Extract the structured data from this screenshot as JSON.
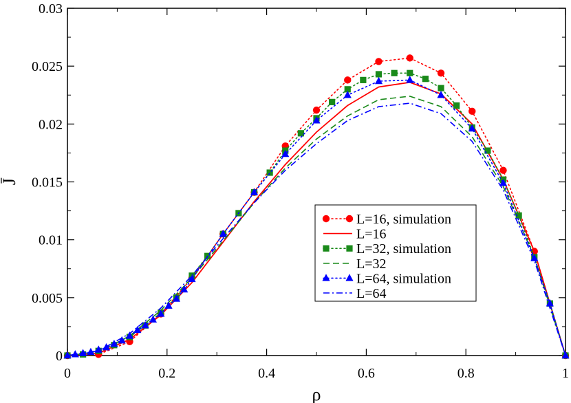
{
  "chart_data": {
    "type": "line",
    "title": "",
    "xlabel": "ρ",
    "ylabel": "J̄",
    "xlim": [
      0,
      1
    ],
    "ylim": [
      0,
      0.03
    ],
    "x_ticks": [
      0,
      0.2,
      0.4,
      0.6,
      0.8,
      1
    ],
    "x_tick_labels": [
      "0",
      "0.2",
      "0.4",
      "0.6",
      "0.8",
      "1"
    ],
    "y_ticks": [
      0,
      0.005,
      0.01,
      0.015,
      0.02,
      0.025,
      0.03
    ],
    "y_tick_labels": [
      "0",
      "0.005",
      "0.01",
      "0.015",
      "0.02",
      "0.025",
      "0.03"
    ],
    "grid": false,
    "legend_position": "center-right",
    "colors": {
      "red": "#ff0000",
      "green": "#1a8a1a",
      "blue": "#0000ff"
    },
    "series": [
      {
        "name": "L=16, simulation",
        "color": "#ff0000",
        "style": "dotted",
        "marker": "circle",
        "x": [
          0,
          0.0625,
          0.125,
          0.1875,
          0.25,
          0.3125,
          0.375,
          0.4375,
          0.5,
          0.5625,
          0.625,
          0.6875,
          0.75,
          0.8125,
          0.875,
          0.9375,
          1
        ],
        "y": [
          0,
          0.0001,
          0.0012,
          0.0036,
          0.0067,
          0.0105,
          0.0141,
          0.0181,
          0.0212,
          0.0238,
          0.0254,
          0.0257,
          0.0244,
          0.0211,
          0.016,
          0.009,
          0
        ]
      },
      {
        "name": "L=16",
        "color": "#ff0000",
        "style": "solid",
        "marker": "none",
        "x": [
          0,
          0.0625,
          0.125,
          0.1875,
          0.25,
          0.3125,
          0.375,
          0.4375,
          0.5,
          0.5625,
          0.625,
          0.6875,
          0.75,
          0.8125,
          0.875,
          0.9375,
          1
        ],
        "y": [
          0,
          0.0002,
          0.0014,
          0.0035,
          0.0063,
          0.0098,
          0.0133,
          0.0165,
          0.0193,
          0.0216,
          0.0232,
          0.0236,
          0.0226,
          0.02,
          0.0152,
          0.009,
          0
        ]
      },
      {
        "name": "L=32, simulation",
        "color": "#1a8a1a",
        "style": "dotted",
        "marker": "square",
        "x": [
          0,
          0.03125,
          0.0625,
          0.09375,
          0.125,
          0.15625,
          0.1875,
          0.21875,
          0.25,
          0.28125,
          0.3125,
          0.34375,
          0.375,
          0.40625,
          0.4375,
          0.46875,
          0.5,
          0.53125,
          0.5625,
          0.59375,
          0.625,
          0.65625,
          0.6875,
          0.71875,
          0.75,
          0.78125,
          0.8125,
          0.84375,
          0.875,
          0.90625,
          0.9375,
          0.96875,
          1
        ],
        "y": [
          0,
          0.0001,
          0.0004,
          0.0009,
          0.0016,
          0.0026,
          0.0037,
          0.005,
          0.0069,
          0.0086,
          0.0105,
          0.0123,
          0.0141,
          0.0158,
          0.0177,
          0.0192,
          0.0205,
          0.0219,
          0.023,
          0.0238,
          0.0243,
          0.0244,
          0.0244,
          0.0239,
          0.0231,
          0.0216,
          0.0197,
          0.0177,
          0.0152,
          0.0121,
          0.0085,
          0.0045,
          0
        ]
      },
      {
        "name": "L=32",
        "color": "#1a8a1a",
        "style": "dashed",
        "marker": "none",
        "x": [
          0,
          0.0625,
          0.125,
          0.1875,
          0.25,
          0.3125,
          0.375,
          0.4375,
          0.5,
          0.5625,
          0.625,
          0.6875,
          0.75,
          0.8125,
          0.875,
          0.9375,
          1
        ],
        "y": [
          0,
          0.0003,
          0.0017,
          0.0039,
          0.0067,
          0.0099,
          0.0132,
          0.0162,
          0.0187,
          0.0207,
          0.0221,
          0.0224,
          0.0215,
          0.0189,
          0.0146,
          0.0085,
          0
        ]
      },
      {
        "name": "L=64, simulation",
        "color": "#0000ff",
        "style": "dotted",
        "marker": "triangle",
        "x": [
          0,
          0.015625,
          0.03125,
          0.046875,
          0.0625,
          0.078125,
          0.09375,
          0.109375,
          0.125,
          0.140625,
          0.15625,
          0.171875,
          0.1875,
          0.203125,
          0.21875,
          0.234375,
          0.25,
          0.3125,
          0.375,
          0.4375,
          0.5,
          0.5625,
          0.625,
          0.6875,
          0.75,
          0.8125,
          0.875,
          0.9375,
          0.96875,
          1
        ],
        "y": [
          0,
          0.0001,
          0.0002,
          0.0003,
          0.0005,
          0.0007,
          0.001,
          0.0013,
          0.0017,
          0.0022,
          0.0026,
          0.0031,
          0.0036,
          0.0043,
          0.0049,
          0.0057,
          0.0066,
          0.0105,
          0.0141,
          0.0174,
          0.0203,
          0.0225,
          0.0237,
          0.0238,
          0.0225,
          0.0196,
          0.0149,
          0.0084,
          0.0045,
          0
        ]
      },
      {
        "name": "L=64",
        "color": "#0000ff",
        "style": "dashdot",
        "marker": "none",
        "x": [
          0,
          0.0625,
          0.125,
          0.1875,
          0.25,
          0.3125,
          0.375,
          0.4375,
          0.5,
          0.5625,
          0.625,
          0.6875,
          0.75,
          0.8125,
          0.875,
          0.9375,
          1
        ],
        "y": [
          0,
          0.0004,
          0.0019,
          0.0041,
          0.0069,
          0.0101,
          0.0132,
          0.016,
          0.0183,
          0.0203,
          0.0215,
          0.0218,
          0.0209,
          0.0185,
          0.0143,
          0.0082,
          0
        ]
      }
    ]
  }
}
